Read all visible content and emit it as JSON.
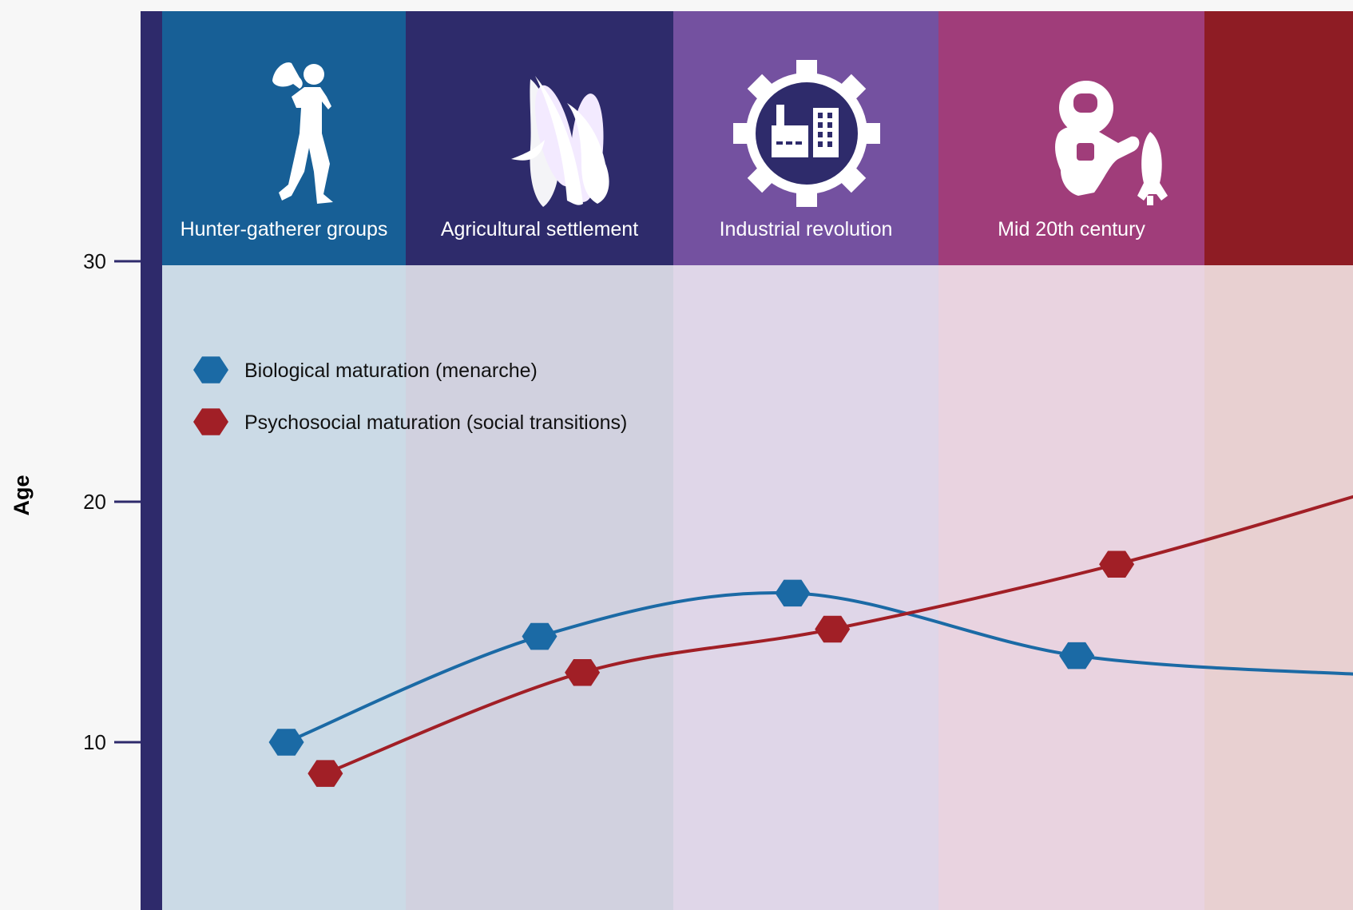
{
  "chart_data": {
    "type": "line",
    "ylabel": "Age",
    "yticks": [
      10,
      20,
      30
    ],
    "ylim": [
      6,
      35.5
    ],
    "eras": [
      {
        "label": "Hunter-gatherer groups",
        "icon": "hunter-gatherer-icon",
        "color": "#175f96",
        "tint": "#cbdae6"
      },
      {
        "label": "Agricultural settlement",
        "icon": "corn-icon",
        "color": "#2e2b6b",
        "tint": "#d1d1df"
      },
      {
        "label": "Industrial revolution",
        "icon": "factory-gear-icon",
        "color": "#7451a0",
        "tint": "#dfd6e8"
      },
      {
        "label": "Mid 20th century",
        "icon": "astronaut-rocket-icon",
        "color": "#a03d7a",
        "tint": "#e9d3e0"
      },
      {
        "label": "",
        "icon": "",
        "color": "#8e1c24",
        "tint": "#e8d0d1"
      }
    ],
    "x": [
      0.6,
      1.5,
      2.45,
      3.52,
      4.5
    ],
    "series": [
      {
        "name": "Biological maturation (menarche)",
        "color": "#1b6aa5",
        "values": [
          10.0,
          14.4,
          16.2,
          13.6,
          12.8
        ],
        "markers": 4
      },
      {
        "name": "Psychosocial maturation (social transitions)",
        "color": "#a11f26",
        "values": [
          8.7,
          12.9,
          14.7,
          17.4,
          20.4
        ],
        "markers": 4
      }
    ],
    "marker_x": [
      [
        0.51,
        1.5,
        2.45,
        3.52
      ],
      [
        0.67,
        1.66,
        2.6,
        3.67
      ]
    ],
    "axis_color": "#2e2a6b",
    "legend_position": "upper-left"
  }
}
